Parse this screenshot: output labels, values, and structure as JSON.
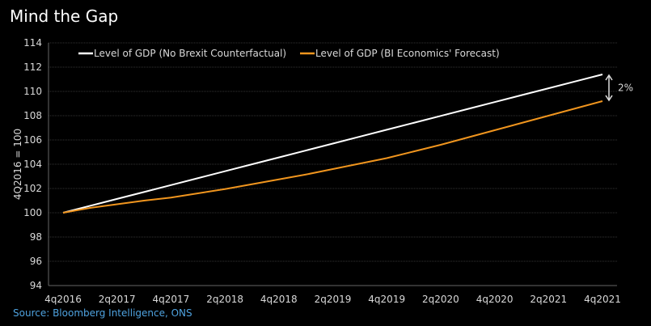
{
  "title": "Mind the Gap",
  "source": "Source: Bloomberg Intelligence, ONS",
  "chart_data": {
    "type": "line",
    "title": "Mind the Gap",
    "xlabel": "",
    "ylabel": "4Q2016 = 100",
    "ylim": [
      94,
      114
    ],
    "yticks": [
      94,
      96,
      98,
      100,
      102,
      104,
      106,
      108,
      110,
      112,
      114
    ],
    "xtick_labels": [
      "4q2016",
      "2q2017",
      "4q2017",
      "2q2018",
      "4q2018",
      "2q2019",
      "4q2019",
      "2q2020",
      "4q2020",
      "2q2021",
      "4q2021"
    ],
    "x": [
      "4q2016",
      "1q2017",
      "2q2017",
      "3q2017",
      "4q2017",
      "1q2018",
      "2q2018",
      "3q2018",
      "4q2018",
      "1q2019",
      "2q2019",
      "3q2019",
      "4q2019",
      "1q2020",
      "2q2020",
      "3q2020",
      "4q2020",
      "1q2021",
      "2q2021",
      "3q2021",
      "4q2021"
    ],
    "grid": true,
    "legend_position": "top",
    "series": [
      {
        "name": "Level of GDP (No Brexit Counterfactual)",
        "color": "#ffffff",
        "values": [
          100,
          100.57,
          101.14,
          101.71,
          102.28,
          102.85,
          103.42,
          103.99,
          104.56,
          105.13,
          105.7,
          106.27,
          106.84,
          107.41,
          107.98,
          108.55,
          109.12,
          109.69,
          110.26,
          110.83,
          111.4
        ]
      },
      {
        "name": "Level of GDP (BI Economics' Forecast)",
        "color": "#f0951e",
        "values": [
          100,
          100.4,
          100.7,
          101.0,
          101.25,
          101.6,
          101.95,
          102.35,
          102.75,
          103.15,
          103.6,
          104.05,
          104.5,
          105.05,
          105.6,
          106.2,
          106.8,
          107.4,
          108.0,
          108.6,
          109.2
        ]
      }
    ],
    "annotation": {
      "text": "2%",
      "between": "series endpoints at 4q2021"
    }
  }
}
